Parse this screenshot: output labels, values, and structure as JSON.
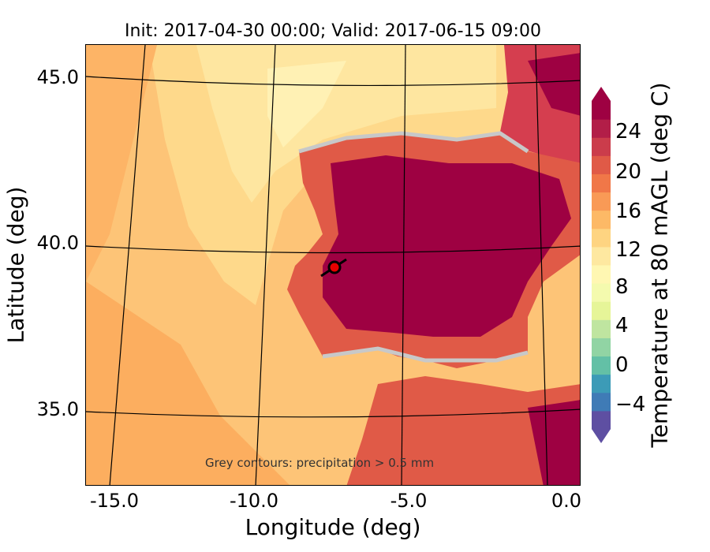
{
  "title": "Init: 2017-04-30 00:00; Valid: 2017-06-15 09:00",
  "axes": {
    "xlabel": "Longitude (deg)",
    "ylabel": "Latitude (deg)",
    "x_ticks": [
      "-15.0",
      "-10.0",
      "-5.0",
      "0.0"
    ],
    "y_ticks": [
      "45.0",
      "40.0",
      "35.0"
    ]
  },
  "footnote": "Grey contours: precipitation > 0.5 mm",
  "colorbar": {
    "label": "Temperature at 80 mAGL (deg C)",
    "ticks": [
      "24",
      "20",
      "16",
      "12",
      "8",
      "4",
      "0",
      "−4"
    ],
    "colors": [
      "#5e4fa2",
      "#3f7bb6",
      "#3c9bb7",
      "#63c0a6",
      "#91d4a4",
      "#bfe5a0",
      "#e6f598",
      "#f4faae",
      "#fff7b2",
      "#fee8a0",
      "#fed481",
      "#fdb966",
      "#f99a56",
      "#f07748",
      "#e05a47",
      "#cb3c4b",
      "#b21e48",
      "#9e0142"
    ]
  },
  "marker": {
    "label": "location-marker",
    "lon": -7.6,
    "lat": 39.3
  },
  "region_colors": {
    "ocean": "#fdbd6a",
    "ocean_cool": "#fee08b",
    "land_hot": "#9e0142",
    "land_warm": "#d53e4f"
  }
}
